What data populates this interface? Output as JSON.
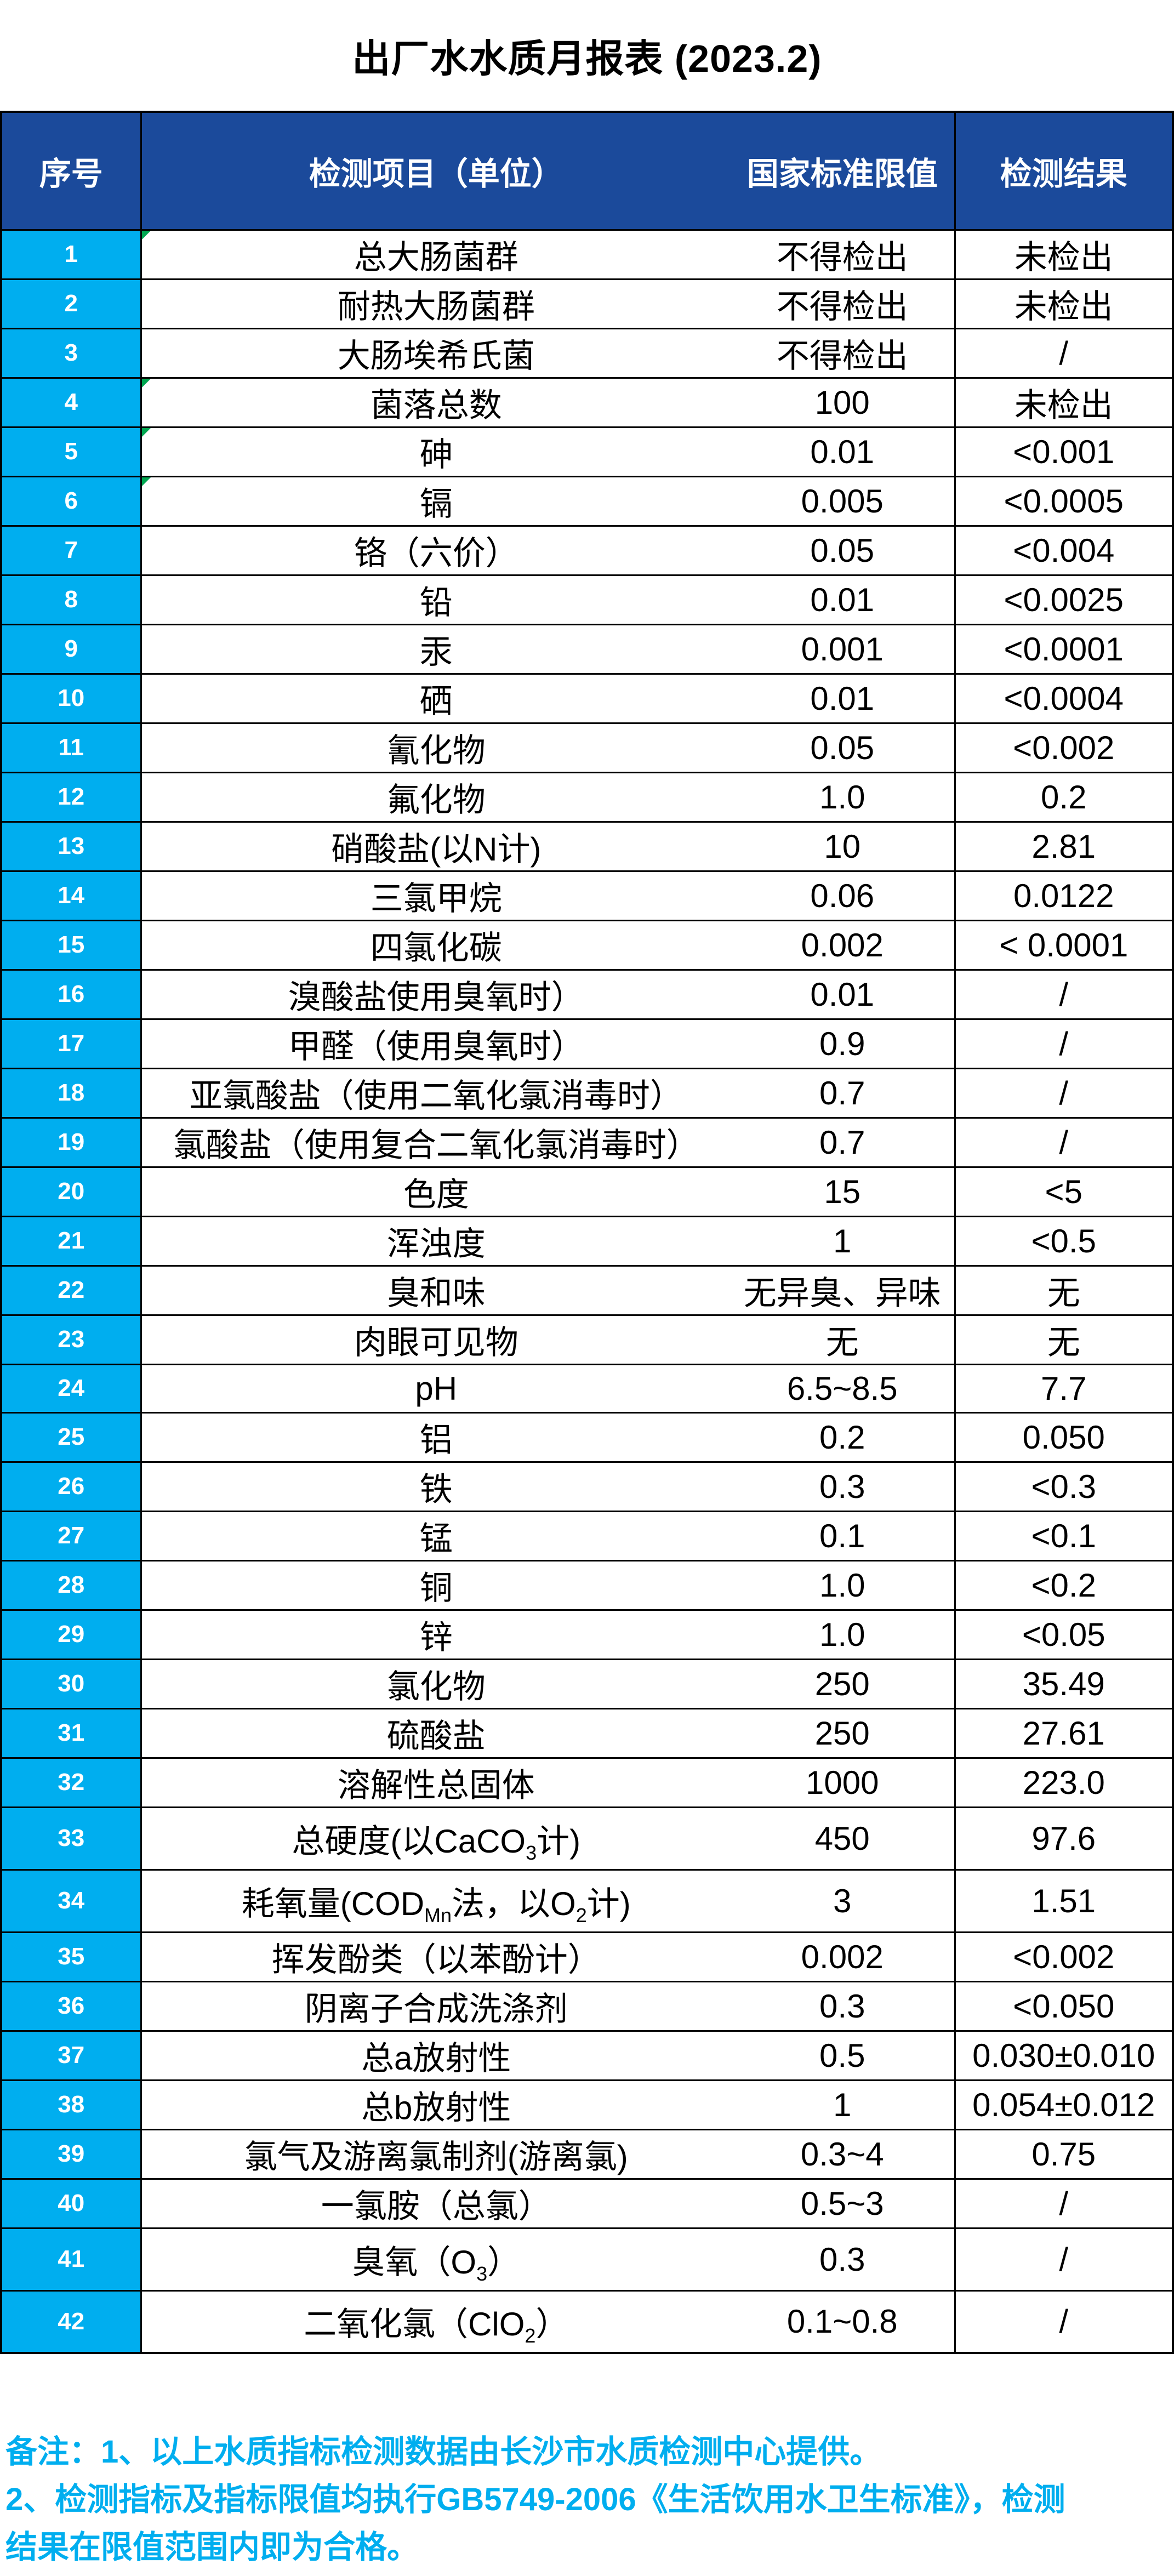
{
  "title": "出厂水水质月报表 (2023.2)",
  "table": {
    "columns": [
      "序号",
      "检测项目（单位）",
      "国家标准限值",
      "检测结果"
    ],
    "rows": [
      {
        "no": "1",
        "item": "总大肠菌群",
        "limit": "不得检出",
        "result": "未检出",
        "tick": true
      },
      {
        "no": "2",
        "item": "耐热大肠菌群",
        "limit": "不得检出",
        "result": "未检出"
      },
      {
        "no": "3",
        "item": "大肠埃希氏菌",
        "limit": "不得检出",
        "result": "/"
      },
      {
        "no": "4",
        "item": "菌落总数",
        "limit": "100",
        "result": "未检出",
        "tick": true
      },
      {
        "no": "5",
        "item": "砷",
        "limit": "0.01",
        "result": "<0.001",
        "tick": true
      },
      {
        "no": "6",
        "item": "镉",
        "limit": "0.005",
        "result": "<0.0005",
        "tick": true
      },
      {
        "no": "7",
        "item": "铬（六价）",
        "limit": "0.05",
        "result": "<0.004"
      },
      {
        "no": "8",
        "item": "铅",
        "limit": "0.01",
        "result": "<0.0025"
      },
      {
        "no": "9",
        "item": "汞",
        "limit": "0.001",
        "result": "<0.0001"
      },
      {
        "no": "10",
        "item": "硒",
        "limit": "0.01",
        "result": "<0.0004"
      },
      {
        "no": "11",
        "item": "氰化物",
        "limit": "0.05",
        "result": "<0.002"
      },
      {
        "no": "12",
        "item": "氟化物",
        "limit": "1.0",
        "result": "0.2"
      },
      {
        "no": "13",
        "item": "硝酸盐(以N计)",
        "limit": "10",
        "result": "2.81"
      },
      {
        "no": "14",
        "item": "三氯甲烷",
        "limit": "0.06",
        "result": "0.0122"
      },
      {
        "no": "15",
        "item": "四氯化碳",
        "limit": "0.002",
        "result": "< 0.0001"
      },
      {
        "no": "16",
        "item": "溴酸盐使用臭氧时）",
        "limit": "0.01",
        "result": "/"
      },
      {
        "no": "17",
        "item": "甲醛（使用臭氧时）",
        "limit": "0.9",
        "result": "/"
      },
      {
        "no": "18",
        "item": "亚氯酸盐（使用二氧化氯消毒时）",
        "limit": "0.7",
        "result": "/"
      },
      {
        "no": "19",
        "item": "氯酸盐（使用复合二氧化氯消毒时）",
        "limit": "0.7",
        "result": "/"
      },
      {
        "no": "20",
        "item": "色度",
        "limit": "15",
        "result": "<5"
      },
      {
        "no": "21",
        "item": "浑浊度",
        "limit": "1",
        "result": "<0.5"
      },
      {
        "no": "22",
        "item": "臭和味",
        "limit": "无异臭、异味",
        "result": "无"
      },
      {
        "no": "23",
        "item": "肉眼可见物",
        "limit": "无",
        "result": "无"
      },
      {
        "no": "24",
        "item": "pH",
        "limit": "6.5~8.5",
        "result": "7.7"
      },
      {
        "no": "25",
        "item": "铝",
        "limit": "0.2",
        "result": "0.050"
      },
      {
        "no": "26",
        "item": "铁",
        "limit": "0.3",
        "result": "<0.3"
      },
      {
        "no": "27",
        "item": "锰",
        "limit": "0.1",
        "result": "<0.1"
      },
      {
        "no": "28",
        "item": "铜",
        "limit": "1.0",
        "result": "<0.2"
      },
      {
        "no": "29",
        "item": "锌",
        "limit": "1.0",
        "result": "<0.05"
      },
      {
        "no": "30",
        "item": "氯化物",
        "limit": "250",
        "result": "35.49"
      },
      {
        "no": "31",
        "item": "硫酸盐",
        "limit": "250",
        "result": "27.61"
      },
      {
        "no": "32",
        "item": "溶解性总固体",
        "limit": "1000",
        "result": "223.0"
      },
      {
        "no": "33",
        "item": "总硬度(以CaCO_{3}计)",
        "limit": "450",
        "result": "97.6",
        "tall": true
      },
      {
        "no": "34",
        "item": "耗氧量(COD_{Mn}法，以O_{2}计)",
        "limit": "3",
        "result": "1.51",
        "tall": true
      },
      {
        "no": "35",
        "item": "挥发酚类（以苯酚计）",
        "limit": "0.002",
        "result": "<0.002"
      },
      {
        "no": "36",
        "item": "阴离子合成洗涤剂",
        "limit": "0.3",
        "result": "<0.050"
      },
      {
        "no": "37",
        "item": "总a放射性",
        "limit": "0.5",
        "result": "0.030±0.010"
      },
      {
        "no": "38",
        "item": "总b放射性",
        "limit": "1",
        "result": "0.054±0.012"
      },
      {
        "no": "39",
        "item": "氯气及游离氯制剂(游离氯)",
        "limit": "0.3~4",
        "result": "0.75"
      },
      {
        "no": "40",
        "item": "一氯胺（总氯）",
        "limit": "0.5~3",
        "result": "/"
      },
      {
        "no": "41",
        "item": "臭氧（O_{3}）",
        "limit": "0.3",
        "result": "/",
        "tall": true
      },
      {
        "no": "42",
        "item": "二氧化氯（ClO_{2}）",
        "limit": "0.1~0.8",
        "result": "/",
        "tall": true
      }
    ]
  },
  "notes": {
    "lines": [
      "备注：1、以上水质指标检测数据由长沙市水质检测中心提供。",
      "2、检测指标及指标限值均执行GB5749-2006《生活饮用水卫生标准》，检测",
      "结果在限值范围内即为合格。"
    ]
  },
  "colors": {
    "header_bg": "#1B4A9B",
    "index_bg": "#00AEEF",
    "note_text": "#00AEEF",
    "tick_green": "#00A651",
    "border": "#000000"
  }
}
